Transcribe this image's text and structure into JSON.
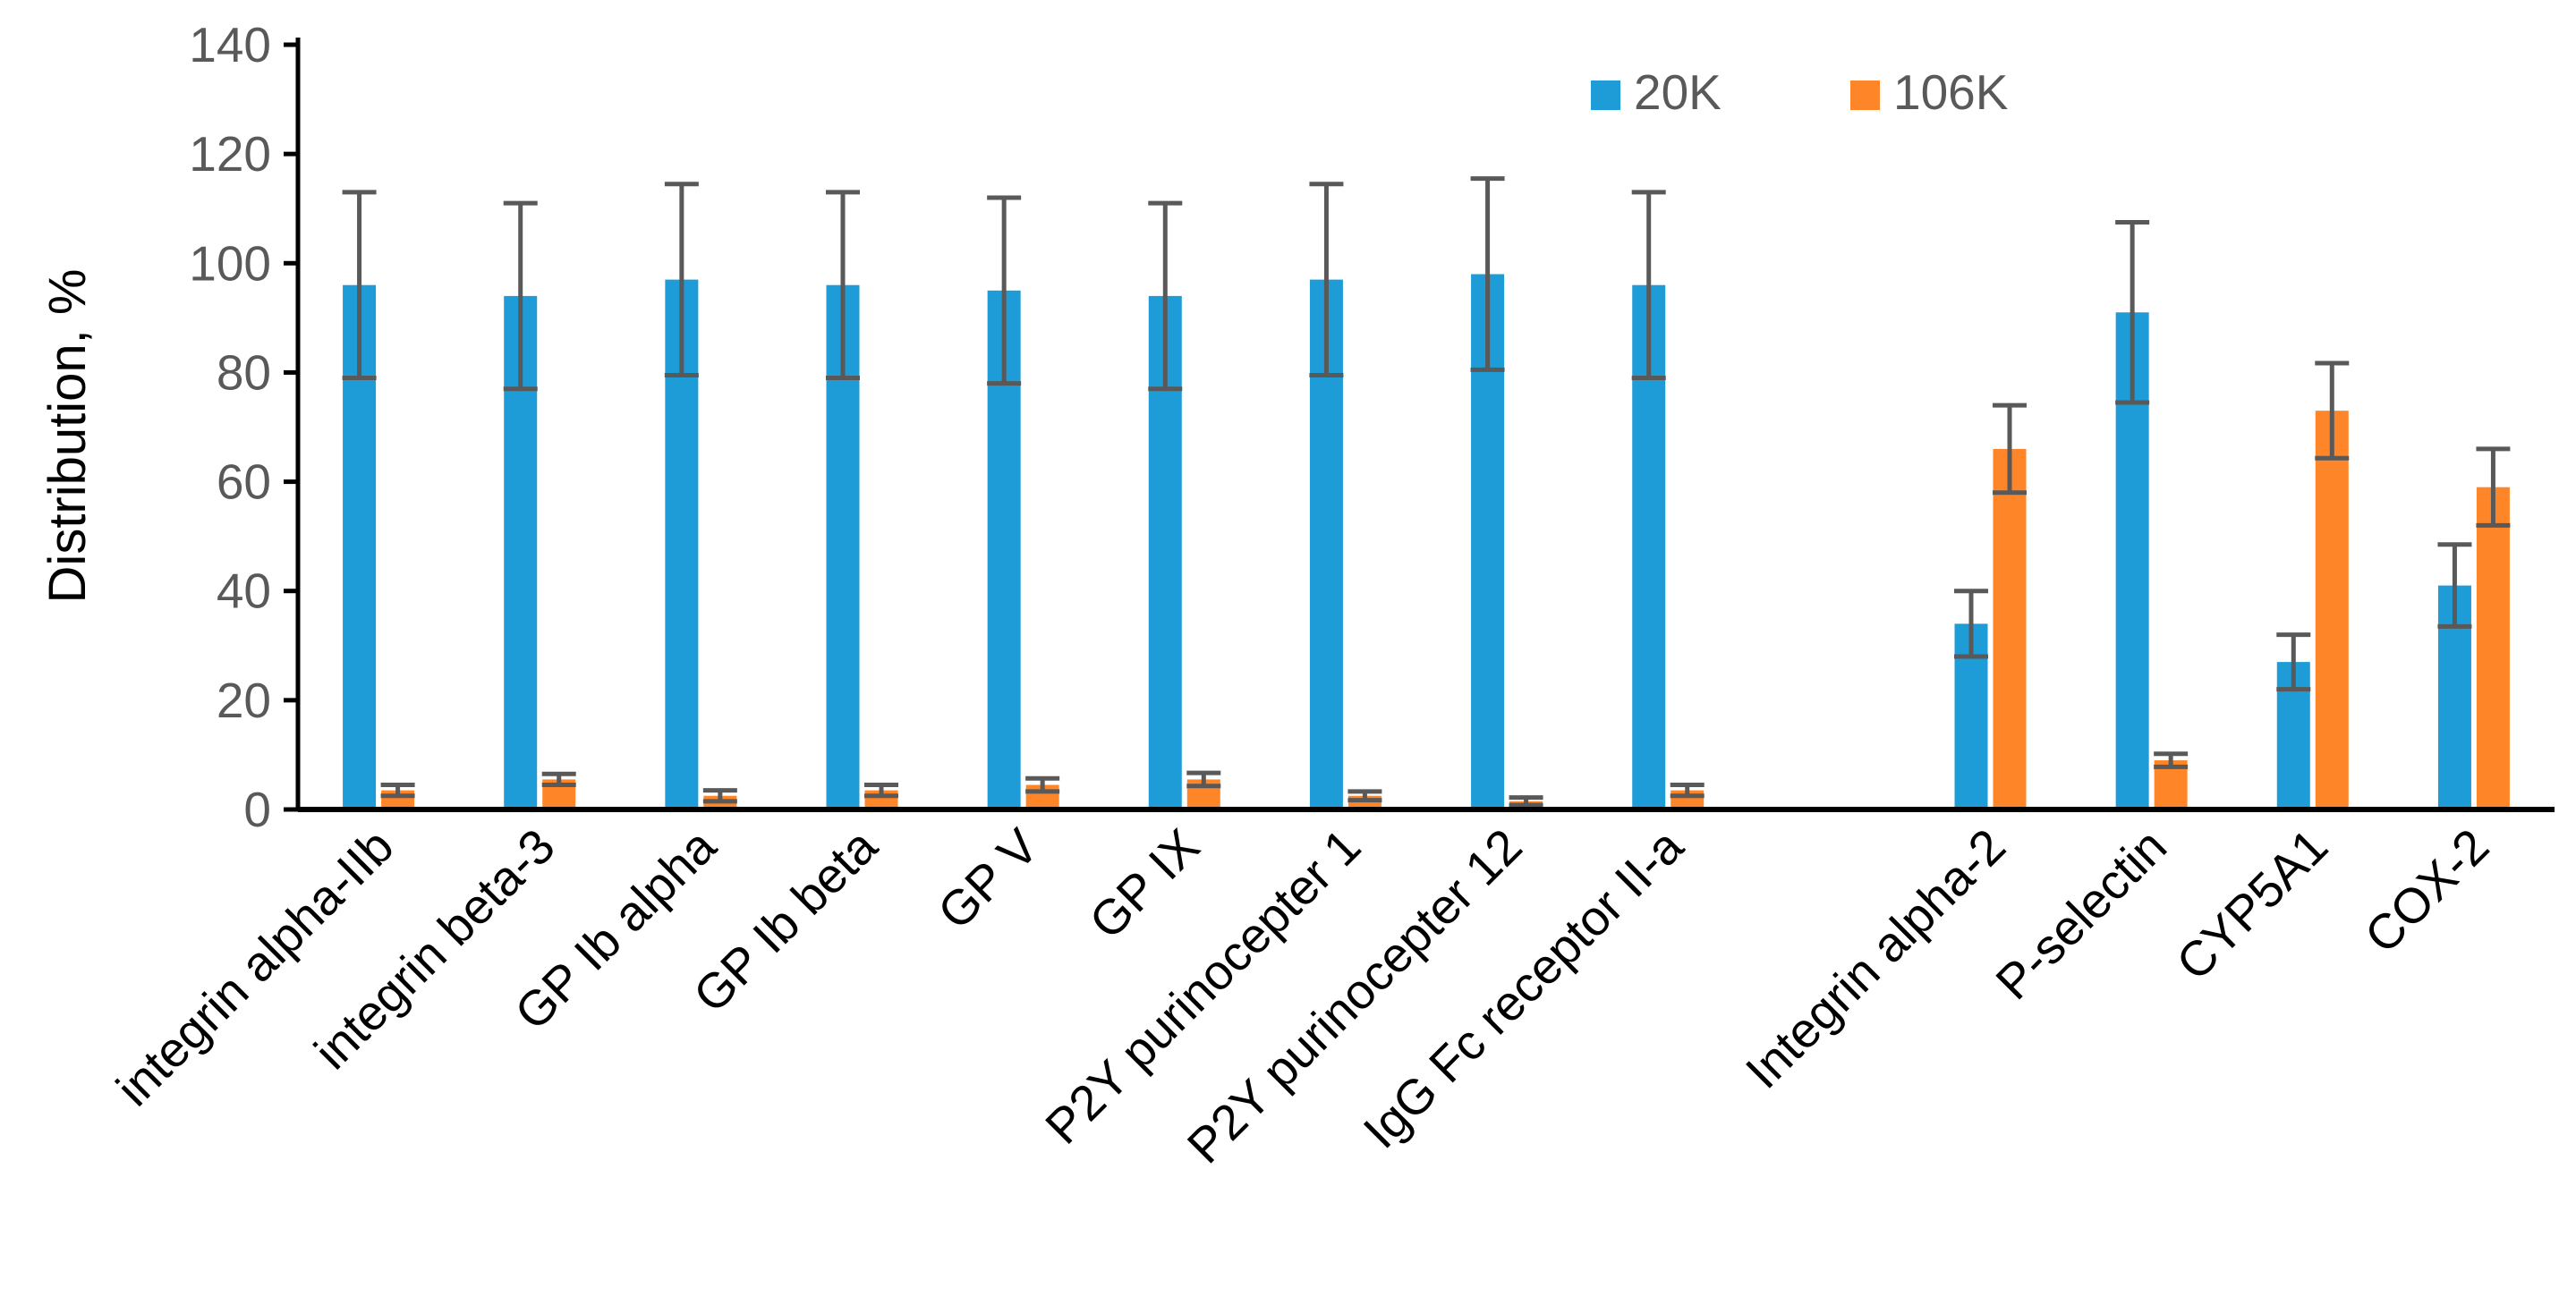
{
  "chart_data": {
    "type": "bar",
    "ylabel": "Distribution, %",
    "ylim": [
      0,
      140
    ],
    "yticks": [
      0,
      20,
      40,
      60,
      80,
      100,
      120,
      140
    ],
    "legend_position": "top-right",
    "grid": false,
    "categories": [
      "integrin alpha-IIb",
      "integrin beta-3",
      "GP Ib alpha",
      "GP Ib beta",
      "GP V",
      "GP IX",
      "P2Y purinocepter 1",
      "P2Y purinocepter 12",
      "IgG Fc receptor II-a",
      "",
      "Integrin alpha-2",
      "P-selectin",
      "CYP5A1",
      "COX-2"
    ],
    "series": [
      {
        "name": "20K",
        "color": "#1E9CD7",
        "values": [
          96,
          94,
          97,
          96,
          95,
          94,
          97,
          98,
          96,
          null,
          34,
          91,
          27,
          41
        ],
        "errors": [
          17,
          17,
          17.5,
          17,
          17,
          17,
          17.5,
          17.5,
          17,
          null,
          6,
          16.5,
          5,
          7.5
        ]
      },
      {
        "name": "106K",
        "color": "#FF8628",
        "values": [
          3.5,
          5.5,
          2.5,
          3.5,
          4.5,
          5.5,
          2.5,
          1.5,
          3.5,
          null,
          66,
          9,
          73,
          59
        ],
        "errors": [
          1,
          1,
          1,
          1,
          1.2,
          1.2,
          0.8,
          0.7,
          1,
          null,
          8,
          1.2,
          8.7,
          7
        ]
      }
    ],
    "error_bar_color": "#595959"
  }
}
